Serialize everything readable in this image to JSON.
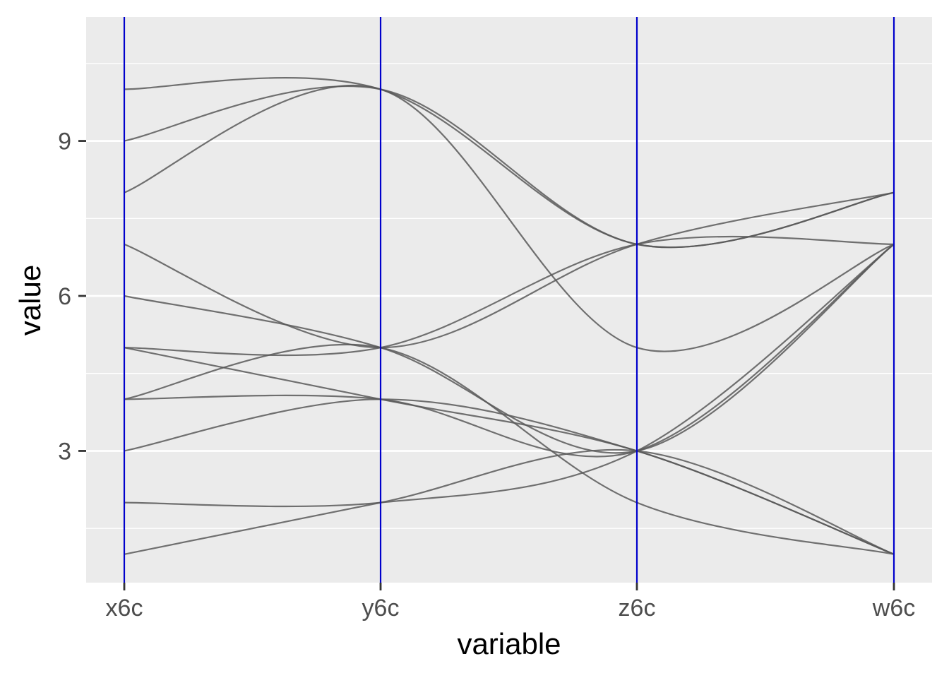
{
  "chart_data": {
    "type": "line",
    "subtype": "parallel-coordinates",
    "title": "",
    "xlabel": "variable",
    "ylabel": "value",
    "categories": [
      "x6c",
      "y6c",
      "z6c",
      "w6c"
    ],
    "yticks": [
      3,
      6,
      9
    ],
    "ylim": [
      0.45,
      11.4
    ],
    "grid": true,
    "panel_background": "#ebebeb",
    "grid_color": "#ffffff",
    "line_color": "#595959",
    "axis_line_color": "#0000cc",
    "series": [
      {
        "values": [
          10,
          10,
          7,
          8
        ]
      },
      {
        "values": [
          9,
          10,
          7,
          8
        ]
      },
      {
        "values": [
          8,
          10,
          5,
          7
        ]
      },
      {
        "values": [
          7,
          5,
          7,
          8
        ]
      },
      {
        "values": [
          6,
          5,
          3,
          7
        ]
      },
      {
        "values": [
          5,
          4,
          3,
          1
        ]
      },
      {
        "values": [
          4,
          4,
          3,
          7
        ]
      },
      {
        "values": [
          3,
          4,
          3,
          1
        ]
      },
      {
        "values": [
          2,
          2,
          3,
          7
        ]
      },
      {
        "values": [
          1,
          2,
          3,
          1
        ]
      },
      {
        "values": [
          5,
          5,
          7,
          7
        ]
      },
      {
        "values": [
          4,
          5,
          2,
          1
        ]
      }
    ]
  }
}
